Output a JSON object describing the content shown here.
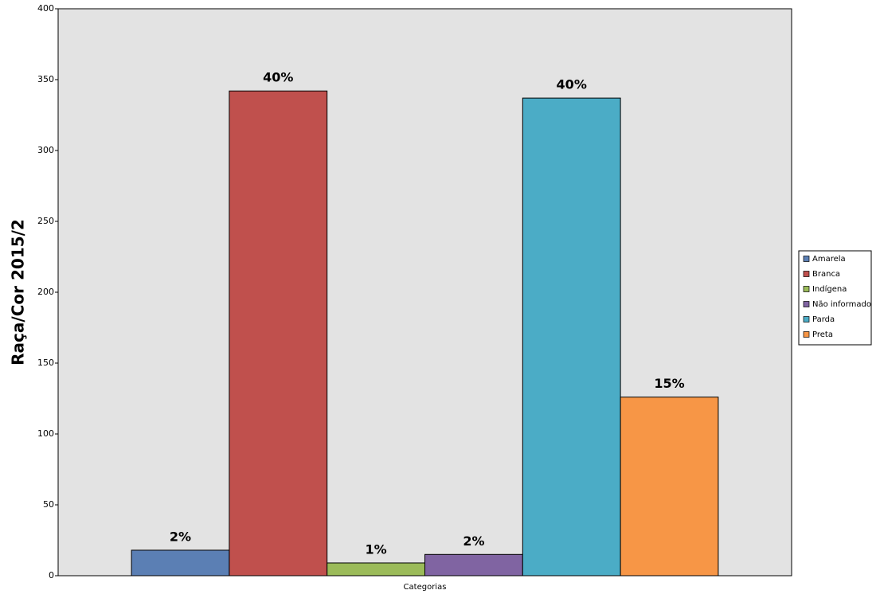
{
  "chart_data": {
    "type": "bar",
    "y_label": "Raça/Cor 2015/2",
    "categories": [
      "Categorias"
    ],
    "series": [
      {
        "name": "Amarela",
        "color": "#5b7fb4",
        "values": [
          18
        ],
        "value_labels": [
          "2%"
        ]
      },
      {
        "name": "Branca",
        "color": "#c0504d",
        "values": [
          342
        ],
        "value_labels": [
          "40%"
        ]
      },
      {
        "name": "Indígena",
        "color": "#9bbb59",
        "values": [
          9
        ],
        "value_labels": [
          "1%"
        ]
      },
      {
        "name": "Não informado",
        "color": "#8064a2",
        "values": [
          15
        ],
        "value_labels": [
          "2%"
        ]
      },
      {
        "name": "Parda",
        "color": "#4bacc6",
        "values": [
          337
        ],
        "value_labels": [
          "40%"
        ]
      },
      {
        "name": "Preta",
        "color": "#f79646",
        "values": [
          126
        ],
        "value_labels": [
          "15%"
        ]
      }
    ],
    "ylim": [
      0,
      400
    ],
    "yticks": [
      0,
      50,
      100,
      150,
      200,
      250,
      300,
      350,
      400
    ],
    "grid": false,
    "legend": "right"
  }
}
